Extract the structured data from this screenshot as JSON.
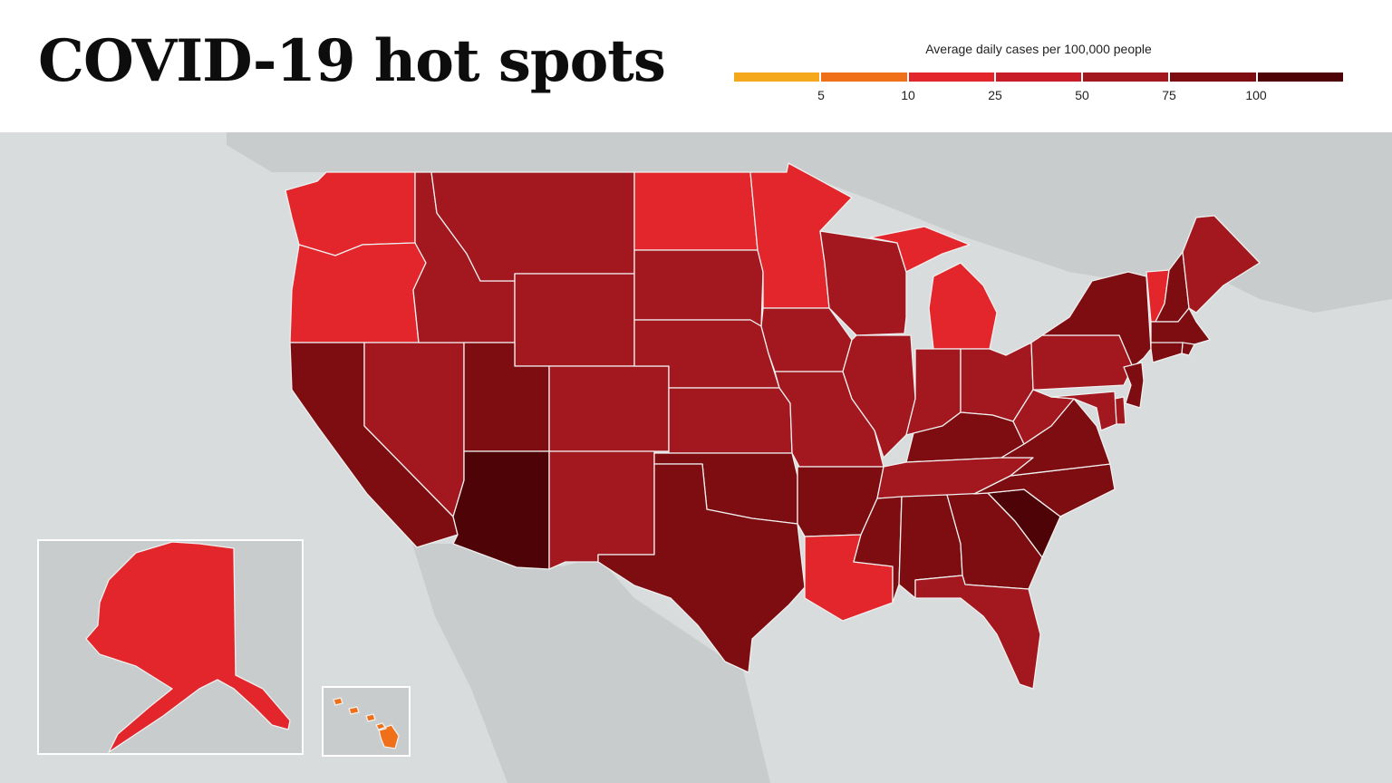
{
  "title": "COVID-19 hot spots",
  "legend": {
    "title": "Average daily cases per 100,000 people",
    "colors": [
      "#f6a81c",
      "#f07019",
      "#e3262c",
      "#c81c29",
      "#a3171f",
      "#7d0d11",
      "#4e0306"
    ],
    "ticks": [
      "5",
      "10",
      "25",
      "50",
      "75",
      "100"
    ]
  },
  "map": {
    "land_color": "#c8cccc",
    "water_color": "#d8dcdc",
    "states": [
      {
        "id": "WA",
        "color": "#e3262c"
      },
      {
        "id": "OR",
        "color": "#e3262c"
      },
      {
        "id": "CA",
        "color": "#7d0d11"
      },
      {
        "id": "NV",
        "color": "#a3171f"
      },
      {
        "id": "ID",
        "color": "#a3171f"
      },
      {
        "id": "MT",
        "color": "#a3171f"
      },
      {
        "id": "WY",
        "color": "#a3171f"
      },
      {
        "id": "UT",
        "color": "#7d0d11"
      },
      {
        "id": "AZ",
        "color": "#4e0306"
      },
      {
        "id": "CO",
        "color": "#a3171f"
      },
      {
        "id": "NM",
        "color": "#a3171f"
      },
      {
        "id": "ND",
        "color": "#e3262c"
      },
      {
        "id": "SD",
        "color": "#a3171f"
      },
      {
        "id": "NE",
        "color": "#a3171f"
      },
      {
        "id": "KS",
        "color": "#a3171f"
      },
      {
        "id": "OK",
        "color": "#7d0d11"
      },
      {
        "id": "TX",
        "color": "#7d0d11"
      },
      {
        "id": "MN",
        "color": "#e3262c"
      },
      {
        "id": "IA",
        "color": "#a3171f"
      },
      {
        "id": "MO",
        "color": "#a3171f"
      },
      {
        "id": "AR",
        "color": "#7d0d11"
      },
      {
        "id": "LA",
        "color": "#e3262c"
      },
      {
        "id": "WI",
        "color": "#a3171f"
      },
      {
        "id": "IL",
        "color": "#a3171f"
      },
      {
        "id": "MI",
        "color": "#e3262c"
      },
      {
        "id": "IN",
        "color": "#a3171f"
      },
      {
        "id": "OH",
        "color": "#a3171f"
      },
      {
        "id": "KY",
        "color": "#7d0d11"
      },
      {
        "id": "TN",
        "color": "#a3171f"
      },
      {
        "id": "MS",
        "color": "#7d0d11"
      },
      {
        "id": "AL",
        "color": "#7d0d11"
      },
      {
        "id": "GA",
        "color": "#7d0d11"
      },
      {
        "id": "FL",
        "color": "#a3171f"
      },
      {
        "id": "SC",
        "color": "#4e0306"
      },
      {
        "id": "NC",
        "color": "#7d0d11"
      },
      {
        "id": "VA",
        "color": "#7d0d11"
      },
      {
        "id": "WV",
        "color": "#a3171f"
      },
      {
        "id": "PA",
        "color": "#a3171f"
      },
      {
        "id": "NY",
        "color": "#7d0d11"
      },
      {
        "id": "VT",
        "color": "#e3262c"
      },
      {
        "id": "NH",
        "color": "#7d0d11"
      },
      {
        "id": "ME",
        "color": "#a3171f"
      },
      {
        "id": "MA",
        "color": "#7d0d11"
      },
      {
        "id": "CT",
        "color": "#7d0d11"
      },
      {
        "id": "RI",
        "color": "#7d0d11"
      },
      {
        "id": "NJ",
        "color": "#7d0d11"
      },
      {
        "id": "DE",
        "color": "#a3171f"
      },
      {
        "id": "MD",
        "color": "#a3171f"
      },
      {
        "id": "AK",
        "color": "#e3262c"
      },
      {
        "id": "HI",
        "color": "#f07019"
      }
    ]
  }
}
